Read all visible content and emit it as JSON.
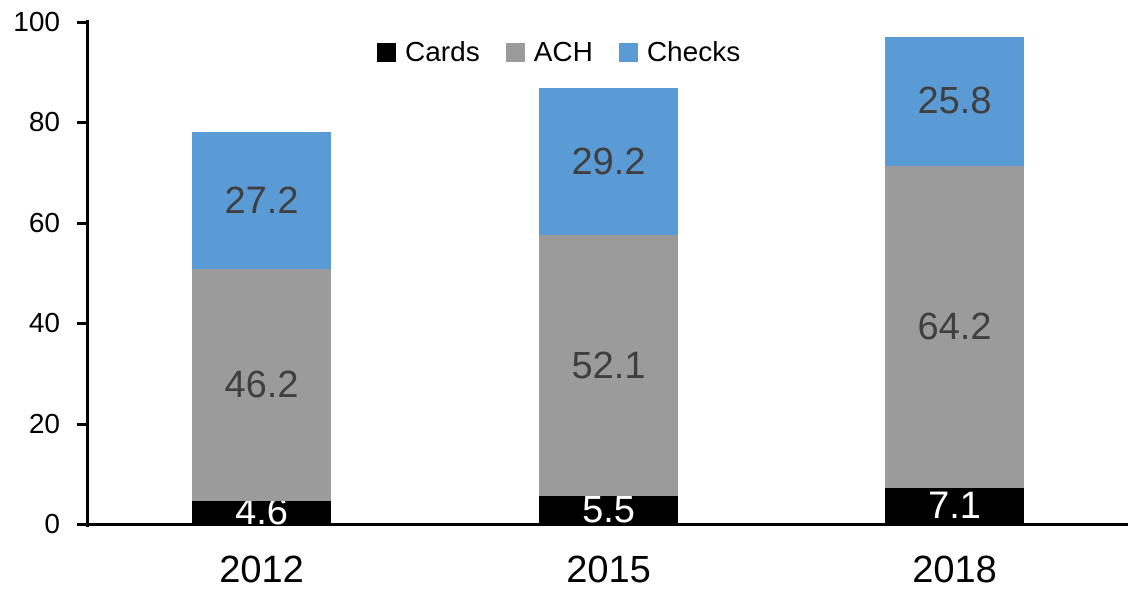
{
  "chart_data": {
    "type": "bar",
    "stacked": true,
    "title": "",
    "categories": [
      "2012",
      "2015",
      "2018"
    ],
    "series": [
      {
        "name": "Cards",
        "color": "#000000",
        "label_color": "#ffffff",
        "values": [
          4.6,
          5.5,
          7.1
        ]
      },
      {
        "name": "ACH",
        "color": "#9b9b9b",
        "label_color": "#3f3f3f",
        "values": [
          46.2,
          52.1,
          64.2
        ]
      },
      {
        "name": "Checks",
        "color": "#5b9bd5",
        "label_color": "#3f3f3f",
        "values": [
          27.2,
          29.2,
          25.8
        ]
      }
    ],
    "y_axis": {
      "min": 0,
      "max": 100,
      "tick_interval": 20,
      "tick_values": [
        0,
        20,
        40,
        60,
        80,
        100
      ],
      "tick_labels": [
        "0",
        "20",
        "40",
        "60",
        "80",
        "100"
      ]
    },
    "x_axis": {
      "labels": [
        "2012",
        "2015",
        "2018"
      ]
    },
    "legend": {
      "position": "top",
      "entries": [
        "Cards",
        "ACH",
        "Checks"
      ]
    },
    "grid": false,
    "data_labels_visible": true,
    "axis_color": "#000000"
  }
}
